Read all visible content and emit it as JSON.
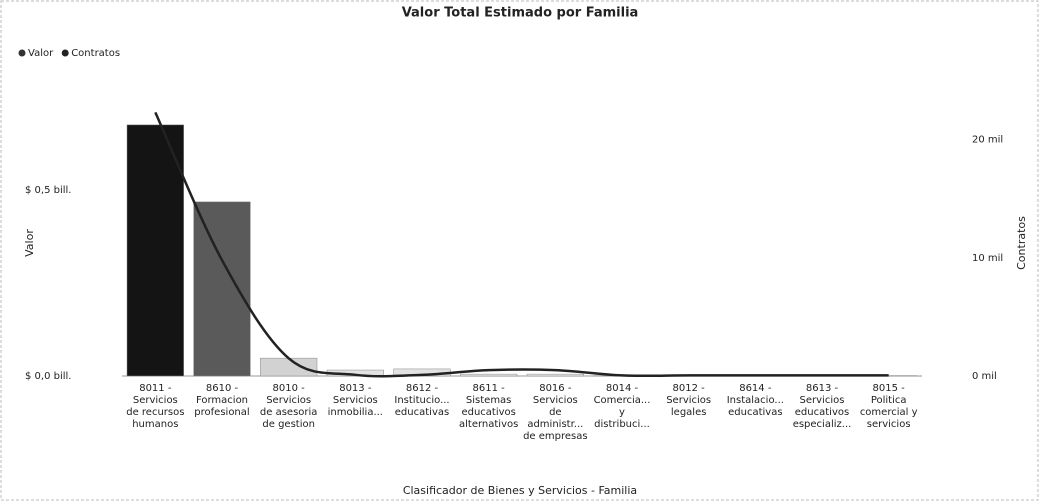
{
  "chart_data": {
    "type": "bar_line",
    "title": "Valor Total Estimado por Familia",
    "x_label": "Clasificador de Bienes y Servicios - Familia",
    "y_label": "Valor",
    "y2_label": "Contratos",
    "legend": "top-left",
    "categories": [
      "8011 - Servicios de recursos humanos",
      "8610 - Formacion profesional",
      "8010 - Servicios de asesoria de gestion",
      "8013 - Servicios inmobilia...",
      "8612 - Institucio... educativas",
      "8611 - Sistemas educativos alternativos",
      "8016 - Servicios de administr... de empresas",
      "8014 - Comercia... y distribuci...",
      "8012 - Servicios legales",
      "8614 - Instalacio... educativas",
      "8613 - Servicios educativos especializ...",
      "8015 - Politica comercial y servicios"
    ],
    "series": [
      {
        "name": "Valor",
        "type": "bar",
        "color": "#333333",
        "colors": [
          "#141414",
          "#5a5a5a",
          "#d2d2d2",
          "#e2e2e2",
          "#e2e2e2",
          "#e6e6e6",
          "#e6e6e6",
          "#eeeeee",
          "#eeeeee",
          "#eeeeee",
          "#eeeeee",
          "#eeeeee"
        ],
        "values": [
          0.675,
          0.468,
          0.048,
          0.016,
          0.019,
          0.005,
          0.005,
          0.001,
          0.001,
          0.001,
          0.001,
          0.001
        ]
      },
      {
        "name": "Contratos",
        "type": "line",
        "axis": "y2",
        "color": "#222222",
        "values": [
          22300,
          9800,
          1500,
          100,
          100,
          500,
          500,
          50,
          50,
          50,
          50,
          50
        ]
      }
    ],
    "ylim": [
      0,
      0.715
    ],
    "yticks": [
      {
        "value": 0,
        "label": "$ 0,0 bill."
      },
      {
        "value": 0.5,
        "label": "$ 0,5 bill."
      }
    ],
    "y2lim": [
      0,
      22500
    ],
    "y2ticks": [
      {
        "value": 0,
        "label": "0 mil"
      },
      {
        "value": 10000,
        "label": "10 mil"
      },
      {
        "value": 20000,
        "label": "20 mil"
      }
    ]
  }
}
